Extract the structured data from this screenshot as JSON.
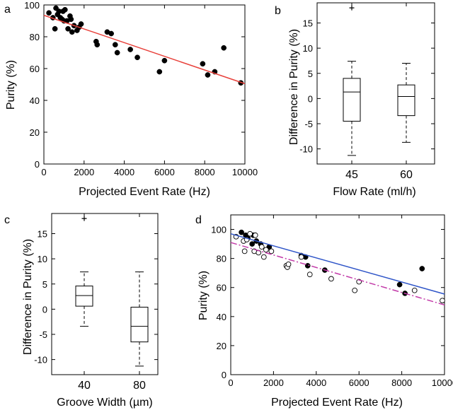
{
  "colors": {
    "axis": "#000000",
    "red_fit": "#e8403a",
    "blue_fit": "#2f55c8",
    "magenta_fit": "#c23aa8",
    "filled": "#000000",
    "open": "#ffffff"
  },
  "chart_data": [
    {
      "panel": "a",
      "type": "scatter",
      "xlabel": "Projected Event Rate (Hz)",
      "ylabel": "Purity (%)",
      "xlim": [
        0,
        10000
      ],
      "ylim": [
        0,
        100
      ],
      "xticks": [
        0,
        2000,
        4000,
        6000,
        8000,
        10000
      ],
      "yticks": [
        0,
        20,
        40,
        60,
        80,
        100
      ],
      "series": [
        {
          "name": "data",
          "marker": "filled",
          "points": [
            [
              250,
              95
            ],
            [
              450,
              92
            ],
            [
              550,
              85
            ],
            [
              600,
              98
            ],
            [
              680,
              94
            ],
            [
              750,
              96
            ],
            [
              820,
              92
            ],
            [
              900,
              91
            ],
            [
              950,
              96
            ],
            [
              1000,
              90
            ],
            [
              1050,
              97
            ],
            [
              1150,
              90
            ],
            [
              1200,
              85
            ],
            [
              1300,
              93
            ],
            [
              1350,
              91
            ],
            [
              1400,
              83
            ],
            [
              1500,
              87
            ],
            [
              1650,
              84
            ],
            [
              1750,
              86
            ],
            [
              1850,
              88
            ],
            [
              2600,
              77
            ],
            [
              2650,
              75
            ],
            [
              3150,
              83
            ],
            [
              3350,
              82
            ],
            [
              3550,
              75
            ],
            [
              3650,
              70
            ],
            [
              4300,
              72
            ],
            [
              4650,
              67
            ],
            [
              5750,
              58
            ],
            [
              6000,
              65
            ],
            [
              7900,
              63
            ],
            [
              8150,
              56
            ],
            [
              8500,
              58
            ],
            [
              8950,
              73
            ],
            [
              9800,
              51
            ]
          ]
        }
      ],
      "fits": [
        {
          "name": "fit",
          "color": "red",
          "style": "solid",
          "x": [
            0,
            10000
          ],
          "y": [
            93.5,
            50.5
          ]
        }
      ]
    },
    {
      "panel": "b",
      "type": "box",
      "xlabel": "Flow Rate (ml/h)",
      "ylabel": "Difference in Purity (%)",
      "ylim": [
        -13,
        19
      ],
      "yticks": [
        -10,
        -5,
        0,
        5,
        10,
        15
      ],
      "categories": [
        "45",
        "60"
      ],
      "boxes": [
        {
          "label": "45",
          "min": -11.3,
          "q1": -4.5,
          "median": 1.3,
          "q3": 4.0,
          "max": 7.4,
          "outliers": [
            18.0
          ]
        },
        {
          "label": "60",
          "min": -8.7,
          "q1": -3.4,
          "median": 0.4,
          "q3": 2.7,
          "max": 7.0,
          "outliers": []
        }
      ]
    },
    {
      "panel": "c",
      "type": "box",
      "xlabel": "Groove Width (µm)",
      "ylabel": "Difference in Purity (%)",
      "ylim": [
        -13,
        19
      ],
      "yticks": [
        -10,
        -5,
        0,
        5,
        10,
        15
      ],
      "categories": [
        "40",
        "80"
      ],
      "boxes": [
        {
          "label": "40",
          "min": -3.4,
          "q1": 0.6,
          "median": 2.7,
          "q3": 4.6,
          "max": 7.4,
          "outliers": [
            18.0
          ]
        },
        {
          "label": "80",
          "min": -11.3,
          "q1": -6.5,
          "median": -3.4,
          "q3": 0.4,
          "max": 7.4,
          "outliers": []
        }
      ]
    },
    {
      "panel": "d",
      "type": "scatter",
      "xlabel": "Projected Event Rate (Hz)",
      "ylabel": "Purity (%)",
      "xlim": [
        0,
        10000
      ],
      "ylim": [
        0,
        110
      ],
      "xticks": [
        0,
        2000,
        4000,
        6000,
        8000,
        10000
      ],
      "yticks": [
        0,
        20,
        40,
        60,
        80,
        100
      ],
      "series": [
        {
          "name": "filled",
          "marker": "filled",
          "points": [
            [
              500,
              98
            ],
            [
              700,
              96
            ],
            [
              800,
              94
            ],
            [
              1000,
              90
            ],
            [
              1050,
              96
            ],
            [
              1200,
              92
            ],
            [
              1400,
              90
            ],
            [
              1800,
              88
            ],
            [
              3300,
              82
            ],
            [
              3500,
              81
            ],
            [
              3600,
              75
            ],
            [
              4400,
              72
            ],
            [
              7900,
              62
            ],
            [
              8150,
              56
            ],
            [
              8950,
              73
            ]
          ]
        },
        {
          "name": "open",
          "marker": "open",
          "points": [
            [
              250,
              95
            ],
            [
              600,
              92
            ],
            [
              650,
              85
            ],
            [
              750,
              93
            ],
            [
              900,
              97
            ],
            [
              1100,
              85
            ],
            [
              1150,
              96
            ],
            [
              1300,
              84
            ],
            [
              1450,
              88
            ],
            [
              1550,
              81
            ],
            [
              1650,
              86
            ],
            [
              1900,
              85
            ],
            [
              2600,
              75
            ],
            [
              2650,
              74
            ],
            [
              2700,
              76
            ],
            [
              3300,
              81
            ],
            [
              3700,
              69
            ],
            [
              4700,
              66
            ],
            [
              5800,
              58
            ],
            [
              6000,
              64
            ],
            [
              8600,
              58
            ],
            [
              9900,
              51
            ]
          ]
        }
      ],
      "fits": [
        {
          "name": "fit-filled",
          "color": "blue",
          "style": "solid",
          "x": [
            0,
            10000
          ],
          "y": [
            97,
            55.5
          ]
        },
        {
          "name": "fit-open",
          "color": "magenta",
          "style": "dashdot",
          "x": [
            0,
            10000
          ],
          "y": [
            91,
            48
          ]
        }
      ]
    }
  ]
}
